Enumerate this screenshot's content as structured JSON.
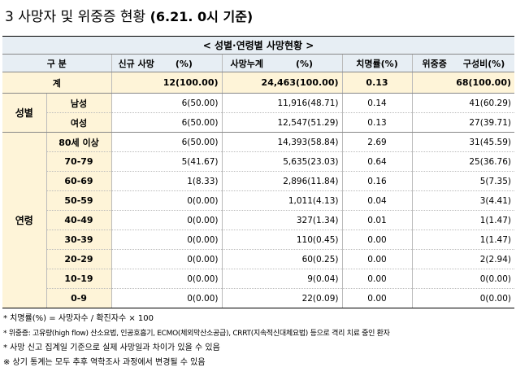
{
  "title": {
    "main": "3 사망자 및 위중증 현황",
    "date": "(6.21. 0시 기준)"
  },
  "table": {
    "caption": "< 성별·연령별 사망현황 >",
    "headers": {
      "category": "구 분",
      "new_deaths": "신규 사망",
      "new_pct": "(%)",
      "cum_deaths": "사망누계",
      "cum_pct": "(%)",
      "fatality": "치명률(%)",
      "severe": "위중증",
      "severe_ratio": "구성비(%)"
    },
    "total": {
      "label": "계",
      "new": "12(100.00)",
      "cum": "24,463(100.00)",
      "fatality": "0.13",
      "severe": "68(100.00)"
    },
    "sex": {
      "label": "성별",
      "rows": [
        {
          "label": "남성",
          "new": "6(50.00)",
          "cum": "11,916(48.71)",
          "fatality": "0.14",
          "severe": "41(60.29)"
        },
        {
          "label": "여성",
          "new": "6(50.00)",
          "cum": "12,547(51.29)",
          "fatality": "0.13",
          "severe": "27(39.71)"
        }
      ]
    },
    "age": {
      "label": "연령",
      "rows": [
        {
          "label": "80세 이상",
          "new": "6(50.00)",
          "cum": "14,393(58.84)",
          "fatality": "2.69",
          "severe": "31(45.59)"
        },
        {
          "label": "70-79",
          "new": "5(41.67)",
          "cum": "5,635(23.03)",
          "fatality": "0.64",
          "severe": "25(36.76)"
        },
        {
          "label": "60-69",
          "new": "1(8.33)",
          "cum": "2,896(11.84)",
          "fatality": "0.16",
          "severe": "5(7.35)"
        },
        {
          "label": "50-59",
          "new": "0(0.00)",
          "cum": "1,011(4.13)",
          "fatality": "0.04",
          "severe": "3(4.41)"
        },
        {
          "label": "40-49",
          "new": "0(0.00)",
          "cum": "327(1.34)",
          "fatality": "0.01",
          "severe": "1(1.47)"
        },
        {
          "label": "30-39",
          "new": "0(0.00)",
          "cum": "110(0.45)",
          "fatality": "0.00",
          "severe": "1(1.47)"
        },
        {
          "label": "20-29",
          "new": "0(0.00)",
          "cum": "60(0.25)",
          "fatality": "0.00",
          "severe": "2(2.94)"
        },
        {
          "label": "10-19",
          "new": "0(0.00)",
          "cum": "9(0.04)",
          "fatality": "0.00",
          "severe": "0(0.00)"
        },
        {
          "label": "0-9",
          "new": "0(0.00)",
          "cum": "22(0.09)",
          "fatality": "0.00",
          "severe": "0(0.00)"
        }
      ]
    }
  },
  "notes": [
    "* 치명률(%) = 사망자수 / 확진자수 × 100",
    "* 위중증: 고유량(high flow) 산소요법, 인공호흡기, ECMO(체외막산소공급), CRRT(지속적신대체요법) 등으로 격리 치료 중인 환자",
    "* 사망 신고 집계일 기준으로 실제 사망일과 차이가 있을 수 있음",
    "※ 상기 통계는 모두 추후 역학조사 과정에서 변경될 수 있음"
  ]
}
